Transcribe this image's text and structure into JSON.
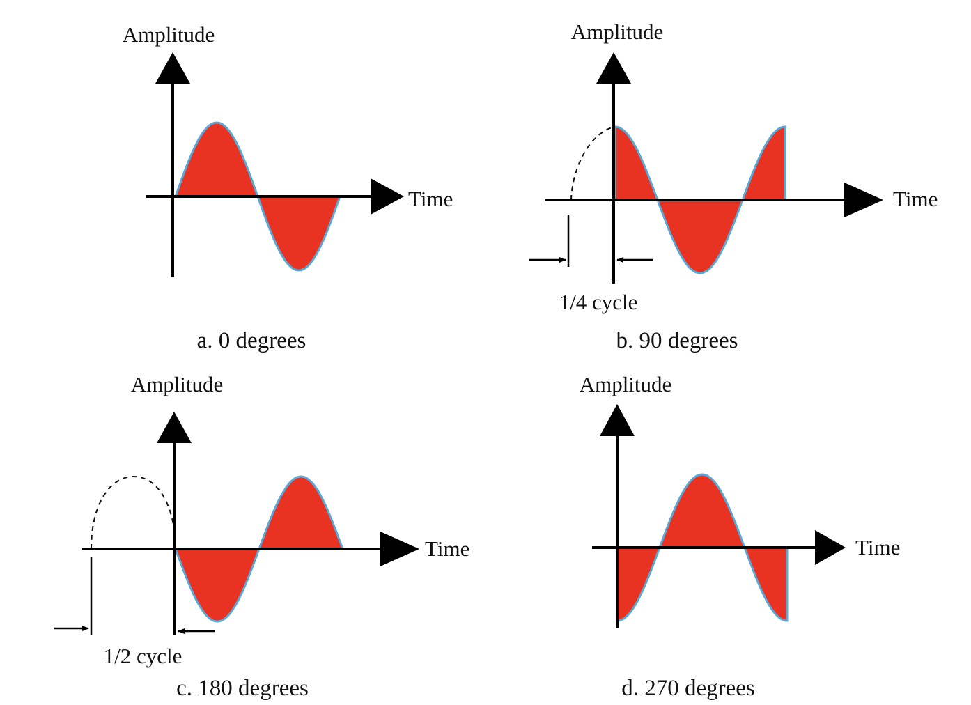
{
  "figure": {
    "panels": [
      {
        "id": "a",
        "amplitude_label": "Amplitude",
        "time_label": "Time",
        "caption": "a. 0 degrees",
        "phase_degrees": 0
      },
      {
        "id": "b",
        "amplitude_label": "Amplitude",
        "time_label": "Time",
        "caption": "b. 90 degrees",
        "phase_degrees": 90,
        "shift_label": "1/4 cycle"
      },
      {
        "id": "c",
        "amplitude_label": "Amplitude",
        "time_label": "Time",
        "caption": "c. 180 degrees",
        "phase_degrees": 180,
        "shift_label": "1/2 cycle"
      },
      {
        "id": "d",
        "amplitude_label": "Amplitude",
        "time_label": "Time",
        "caption": "d. 270 degrees",
        "phase_degrees": 270
      }
    ],
    "colors": {
      "wave_fill": "#e83323",
      "wave_outline": "#5aa8d6",
      "axis": "#000000"
    }
  }
}
